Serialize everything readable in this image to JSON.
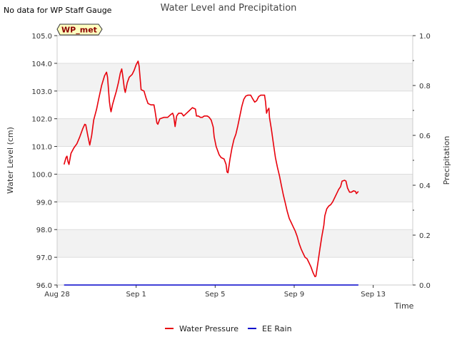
{
  "notice": "No data for WP Staff Gauge",
  "chart_data": {
    "type": "line",
    "title": "Water Level and Precipitation",
    "xlabel": "Time",
    "ylabel_left": "Water Level (cm)",
    "ylabel_right": "Precipitation",
    "station_badge": "WP_met",
    "grid": true,
    "legend_position": "bottom-center",
    "x_unit": "days since Aug 28",
    "xlim": [
      0,
      18
    ],
    "ylim_left": [
      96.0,
      105.0
    ],
    "ylim_right": [
      0.0,
      1.0
    ],
    "x_ticks": [
      {
        "label": "Aug 28",
        "value": 0
      },
      {
        "label": "Sep 1",
        "value": 4
      },
      {
        "label": "Sep 5",
        "value": 8
      },
      {
        "label": "Sep 9",
        "value": 12
      },
      {
        "label": "Sep 13",
        "value": 16
      }
    ],
    "y_ticks_left": [
      "96.0",
      "97.0",
      "98.0",
      "99.0",
      "100.0",
      "101.0",
      "102.0",
      "103.0",
      "104.0",
      "105.0"
    ],
    "y_ticks_right": [
      "0.0",
      "0.2",
      "0.4",
      "0.6",
      "0.8",
      "1.0"
    ],
    "series": [
      {
        "name": "Water Pressure",
        "color": "#e8000b",
        "axis": "left",
        "points": [
          [
            0.35,
            100.35
          ],
          [
            0.45,
            100.6
          ],
          [
            0.5,
            100.65
          ],
          [
            0.55,
            100.45
          ],
          [
            0.6,
            100.35
          ],
          [
            0.7,
            100.75
          ],
          [
            0.85,
            100.95
          ],
          [
            1.0,
            101.1
          ],
          [
            1.15,
            101.35
          ],
          [
            1.3,
            101.65
          ],
          [
            1.4,
            101.8
          ],
          [
            1.45,
            101.78
          ],
          [
            1.55,
            101.4
          ],
          [
            1.65,
            101.05
          ],
          [
            1.75,
            101.4
          ],
          [
            1.85,
            101.95
          ],
          [
            2.0,
            102.35
          ],
          [
            2.1,
            102.7
          ],
          [
            2.25,
            103.2
          ],
          [
            2.4,
            103.55
          ],
          [
            2.5,
            103.68
          ],
          [
            2.55,
            103.5
          ],
          [
            2.65,
            102.6
          ],
          [
            2.7,
            102.35
          ],
          [
            2.73,
            102.25
          ],
          [
            2.8,
            102.5
          ],
          [
            2.9,
            102.75
          ],
          [
            3.0,
            103.0
          ],
          [
            3.1,
            103.3
          ],
          [
            3.2,
            103.65
          ],
          [
            3.27,
            103.8
          ],
          [
            3.32,
            103.55
          ],
          [
            3.4,
            103.1
          ],
          [
            3.45,
            102.95
          ],
          [
            3.55,
            103.3
          ],
          [
            3.65,
            103.5
          ],
          [
            3.8,
            103.6
          ],
          [
            3.9,
            103.75
          ],
          [
            4.0,
            103.95
          ],
          [
            4.1,
            104.08
          ],
          [
            4.15,
            103.9
          ],
          [
            4.25,
            103.05
          ],
          [
            4.4,
            103.0
          ],
          [
            4.5,
            102.75
          ],
          [
            4.6,
            102.55
          ],
          [
            4.75,
            102.5
          ],
          [
            4.9,
            102.5
          ],
          [
            4.95,
            102.3
          ],
          [
            5.05,
            101.85
          ],
          [
            5.1,
            101.8
          ],
          [
            5.2,
            102.0
          ],
          [
            5.4,
            102.05
          ],
          [
            5.6,
            102.05
          ],
          [
            5.75,
            102.15
          ],
          [
            5.85,
            102.2
          ],
          [
            5.9,
            102.1
          ],
          [
            5.97,
            101.72
          ],
          [
            6.05,
            102.1
          ],
          [
            6.15,
            102.2
          ],
          [
            6.3,
            102.2
          ],
          [
            6.4,
            102.1
          ],
          [
            6.55,
            102.2
          ],
          [
            6.7,
            102.3
          ],
          [
            6.85,
            102.4
          ],
          [
            7.0,
            102.35
          ],
          [
            7.05,
            102.1
          ],
          [
            7.15,
            102.1
          ],
          [
            7.25,
            102.05
          ],
          [
            7.35,
            102.05
          ],
          [
            7.45,
            102.1
          ],
          [
            7.6,
            102.1
          ],
          [
            7.7,
            102.05
          ],
          [
            7.8,
            101.95
          ],
          [
            7.9,
            101.7
          ],
          [
            7.95,
            101.35
          ],
          [
            8.05,
            101.0
          ],
          [
            8.2,
            100.7
          ],
          [
            8.3,
            100.6
          ],
          [
            8.45,
            100.55
          ],
          [
            8.55,
            100.35
          ],
          [
            8.6,
            100.08
          ],
          [
            8.65,
            100.05
          ],
          [
            8.75,
            100.55
          ],
          [
            8.85,
            100.95
          ],
          [
            8.95,
            101.25
          ],
          [
            9.05,
            101.45
          ],
          [
            9.15,
            101.75
          ],
          [
            9.25,
            102.1
          ],
          [
            9.35,
            102.45
          ],
          [
            9.45,
            102.7
          ],
          [
            9.55,
            102.82
          ],
          [
            9.65,
            102.85
          ],
          [
            9.8,
            102.85
          ],
          [
            9.9,
            102.72
          ],
          [
            10.0,
            102.6
          ],
          [
            10.1,
            102.65
          ],
          [
            10.2,
            102.8
          ],
          [
            10.3,
            102.85
          ],
          [
            10.5,
            102.85
          ],
          [
            10.55,
            102.6
          ],
          [
            10.6,
            102.2
          ],
          [
            10.65,
            102.3
          ],
          [
            10.72,
            102.38
          ],
          [
            10.75,
            102.05
          ],
          [
            10.85,
            101.6
          ],
          [
            10.95,
            101.1
          ],
          [
            11.05,
            100.6
          ],
          [
            11.15,
            100.25
          ],
          [
            11.25,
            99.95
          ],
          [
            11.35,
            99.6
          ],
          [
            11.45,
            99.25
          ],
          [
            11.55,
            98.95
          ],
          [
            11.65,
            98.65
          ],
          [
            11.75,
            98.4
          ],
          [
            11.85,
            98.25
          ],
          [
            11.95,
            98.1
          ],
          [
            12.05,
            97.95
          ],
          [
            12.15,
            97.75
          ],
          [
            12.25,
            97.5
          ],
          [
            12.35,
            97.3
          ],
          [
            12.45,
            97.15
          ],
          [
            12.55,
            97.0
          ],
          [
            12.65,
            96.95
          ],
          [
            12.75,
            96.8
          ],
          [
            12.85,
            96.65
          ],
          [
            12.95,
            96.45
          ],
          [
            13.05,
            96.3
          ],
          [
            13.1,
            96.32
          ],
          [
            13.2,
            96.8
          ],
          [
            13.3,
            97.3
          ],
          [
            13.4,
            97.75
          ],
          [
            13.5,
            98.15
          ],
          [
            13.55,
            98.5
          ],
          [
            13.65,
            98.75
          ],
          [
            13.75,
            98.85
          ],
          [
            13.85,
            98.9
          ],
          [
            13.95,
            99.0
          ],
          [
            14.05,
            99.15
          ],
          [
            14.15,
            99.3
          ],
          [
            14.25,
            99.45
          ],
          [
            14.35,
            99.55
          ],
          [
            14.42,
            99.75
          ],
          [
            14.55,
            99.78
          ],
          [
            14.62,
            99.75
          ],
          [
            14.7,
            99.5
          ],
          [
            14.8,
            99.35
          ],
          [
            14.9,
            99.35
          ],
          [
            15.0,
            99.4
          ],
          [
            15.1,
            99.38
          ],
          [
            15.15,
            99.3
          ],
          [
            15.25,
            99.38
          ]
        ]
      },
      {
        "name": "EE Rain",
        "color": "#0000cc",
        "axis": "right",
        "points": [
          [
            0.35,
            0.0
          ],
          [
            15.25,
            0.0
          ]
        ]
      }
    ]
  }
}
